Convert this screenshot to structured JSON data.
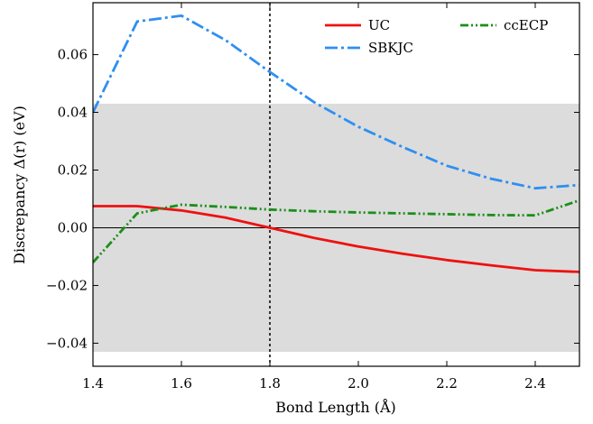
{
  "chart_data": {
    "type": "line",
    "xlabel": "Bond Length (Å)",
    "ylabel": "Discrepancy Δ(r) (eV)",
    "xlim": [
      1.4,
      2.5
    ],
    "ylim": [
      -0.048,
      0.078
    ],
    "x_ticks": [
      1.4,
      1.6,
      1.8,
      2.0,
      2.2,
      2.4
    ],
    "x_tick_labels": [
      "1.4",
      "1.6",
      "1.8",
      "2.0",
      "2.2",
      "2.4"
    ],
    "y_ticks": [
      -0.04,
      -0.02,
      0.0,
      0.02,
      0.04,
      0.06
    ],
    "y_tick_labels": [
      "−0.04",
      "−0.02",
      "0.00",
      "0.02",
      "0.04",
      "0.06"
    ],
    "grid": false,
    "legend_position": "top-right",
    "shaded_band": {
      "y_range": [
        -0.043,
        0.043
      ],
      "color": "#dcdcdc"
    },
    "reference_hline": {
      "y": 0.0,
      "color": "#000000"
    },
    "reference_vline": {
      "x": 1.8,
      "style": "dotted",
      "color": "#000000"
    },
    "series": [
      {
        "name": "UC",
        "color": "#ee1111",
        "style": "solid",
        "x": [
          1.4,
          1.5,
          1.6,
          1.7,
          1.8,
          1.9,
          2.0,
          2.1,
          2.2,
          2.3,
          2.4,
          2.5
        ],
        "y": [
          0.0075,
          0.0075,
          0.006,
          0.0035,
          0.0,
          -0.0035,
          -0.0065,
          -0.009,
          -0.0112,
          -0.013,
          -0.0147,
          -0.0153
        ]
      },
      {
        "name": "SBKJC",
        "color": "#2f8ff0",
        "style": "dashdot",
        "x": [
          1.4,
          1.5,
          1.6,
          1.7,
          1.8,
          1.9,
          2.0,
          2.1,
          2.2,
          2.3,
          2.4,
          2.5
        ],
        "y": [
          0.04,
          0.0715,
          0.0735,
          0.065,
          0.054,
          0.0435,
          0.035,
          0.028,
          0.0215,
          0.017,
          0.0137,
          0.0148
        ]
      },
      {
        "name": "ccECP",
        "color": "#1a8f1a",
        "style": "dashdotdot",
        "x": [
          1.4,
          1.5,
          1.6,
          1.7,
          1.8,
          1.9,
          2.0,
          2.1,
          2.2,
          2.3,
          2.4,
          2.5
        ],
        "y": [
          -0.012,
          0.005,
          0.008,
          0.0072,
          0.0063,
          0.0057,
          0.0053,
          0.005,
          0.0047,
          0.0044,
          0.0043,
          0.0095
        ]
      }
    ]
  }
}
